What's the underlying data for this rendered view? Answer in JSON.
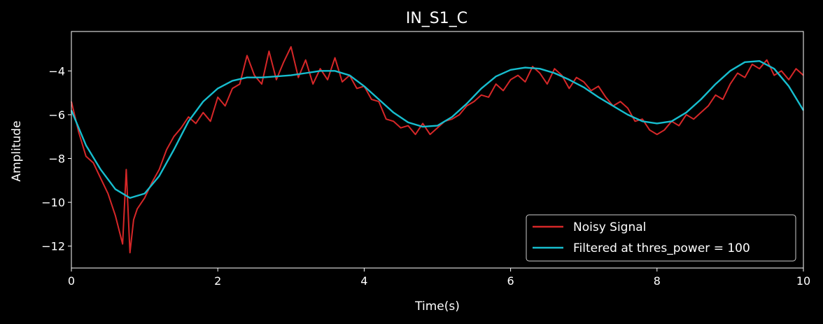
{
  "chart_data": {
    "type": "line",
    "title": "IN_S1_C",
    "xlabel": "Time(s)",
    "ylabel": "Amplitude",
    "xlim": [
      0,
      10
    ],
    "ylim": [
      -13.0,
      -2.2
    ],
    "xticks": [
      0,
      2,
      4,
      6,
      8,
      10
    ],
    "yticks": [
      -12,
      -10,
      -8,
      -6,
      -4
    ],
    "ytick_labels": [
      "−12",
      "−10",
      "−8",
      "−6",
      "−4"
    ],
    "grid": false,
    "legend_position": "lower-right",
    "background": "#000000",
    "series": [
      {
        "name": "Noisy Signal",
        "color": "#d62728",
        "x": [
          0.0,
          0.1,
          0.2,
          0.3,
          0.4,
          0.5,
          0.6,
          0.7,
          0.75,
          0.8,
          0.85,
          0.9,
          1.0,
          1.1,
          1.2,
          1.3,
          1.4,
          1.5,
          1.6,
          1.7,
          1.8,
          1.9,
          2.0,
          2.1,
          2.2,
          2.3,
          2.4,
          2.5,
          2.6,
          2.7,
          2.8,
          2.9,
          3.0,
          3.1,
          3.2,
          3.3,
          3.4,
          3.5,
          3.6,
          3.7,
          3.8,
          3.9,
          4.0,
          4.1,
          4.2,
          4.3,
          4.4,
          4.5,
          4.6,
          4.7,
          4.8,
          4.9,
          5.0,
          5.1,
          5.2,
          5.3,
          5.4,
          5.5,
          5.6,
          5.7,
          5.8,
          5.9,
          6.0,
          6.1,
          6.2,
          6.3,
          6.4,
          6.5,
          6.6,
          6.7,
          6.8,
          6.9,
          7.0,
          7.1,
          7.2,
          7.3,
          7.4,
          7.5,
          7.6,
          7.7,
          7.8,
          7.9,
          8.0,
          8.1,
          8.2,
          8.3,
          8.4,
          8.5,
          8.6,
          8.7,
          8.8,
          8.9,
          9.0,
          9.1,
          9.2,
          9.3,
          9.4,
          9.5,
          9.6,
          9.7,
          9.8,
          9.9,
          10.0
        ],
        "values": [
          -5.4,
          -6.8,
          -7.9,
          -8.2,
          -8.9,
          -9.6,
          -10.6,
          -11.9,
          -8.5,
          -12.3,
          -10.8,
          -10.3,
          -9.8,
          -9.1,
          -8.5,
          -7.6,
          -7.0,
          -6.6,
          -6.1,
          -6.4,
          -5.9,
          -6.3,
          -5.2,
          -5.6,
          -4.8,
          -4.6,
          -3.3,
          -4.2,
          -4.6,
          -3.1,
          -4.4,
          -3.6,
          -2.9,
          -4.3,
          -3.5,
          -4.6,
          -3.9,
          -4.4,
          -3.4,
          -4.5,
          -4.2,
          -4.8,
          -4.7,
          -5.3,
          -5.4,
          -6.2,
          -6.3,
          -6.6,
          -6.5,
          -6.9,
          -6.4,
          -6.9,
          -6.6,
          -6.3,
          -6.2,
          -6.0,
          -5.6,
          -5.4,
          -5.1,
          -5.2,
          -4.6,
          -4.9,
          -4.4,
          -4.2,
          -4.5,
          -3.8,
          -4.1,
          -4.6,
          -3.9,
          -4.2,
          -4.8,
          -4.3,
          -4.5,
          -4.9,
          -4.7,
          -5.2,
          -5.6,
          -5.4,
          -5.7,
          -6.3,
          -6.2,
          -6.7,
          -6.9,
          -6.7,
          -6.3,
          -6.5,
          -6.0,
          -6.2,
          -5.9,
          -5.6,
          -5.1,
          -5.3,
          -4.6,
          -4.1,
          -4.3,
          -3.7,
          -3.9,
          -3.5,
          -4.2,
          -4.0,
          -4.4,
          -3.9,
          -4.2
        ]
      },
      {
        "name": "Filtered at thres_power = 100",
        "color": "#17becf",
        "x": [
          0.0,
          0.2,
          0.4,
          0.6,
          0.8,
          1.0,
          1.2,
          1.4,
          1.6,
          1.8,
          2.0,
          2.2,
          2.4,
          2.6,
          2.8,
          3.0,
          3.2,
          3.4,
          3.6,
          3.8,
          4.0,
          4.2,
          4.4,
          4.6,
          4.8,
          5.0,
          5.2,
          5.4,
          5.6,
          5.8,
          6.0,
          6.2,
          6.4,
          6.6,
          6.8,
          7.0,
          7.2,
          7.4,
          7.6,
          7.8,
          8.0,
          8.2,
          8.4,
          8.6,
          8.8,
          9.0,
          9.2,
          9.4,
          9.6,
          9.8,
          10.0
        ],
        "values": [
          -5.8,
          -7.4,
          -8.5,
          -9.4,
          -9.8,
          -9.6,
          -8.8,
          -7.6,
          -6.3,
          -5.4,
          -4.8,
          -4.45,
          -4.3,
          -4.3,
          -4.25,
          -4.2,
          -4.1,
          -4.0,
          -4.0,
          -4.2,
          -4.7,
          -5.3,
          -5.9,
          -6.35,
          -6.55,
          -6.5,
          -6.1,
          -5.5,
          -4.8,
          -4.25,
          -3.95,
          -3.85,
          -3.9,
          -4.1,
          -4.4,
          -4.75,
          -5.2,
          -5.6,
          -6.0,
          -6.3,
          -6.4,
          -6.3,
          -5.9,
          -5.3,
          -4.6,
          -4.0,
          -3.6,
          -3.55,
          -3.9,
          -4.7,
          -5.8
        ]
      }
    ]
  }
}
